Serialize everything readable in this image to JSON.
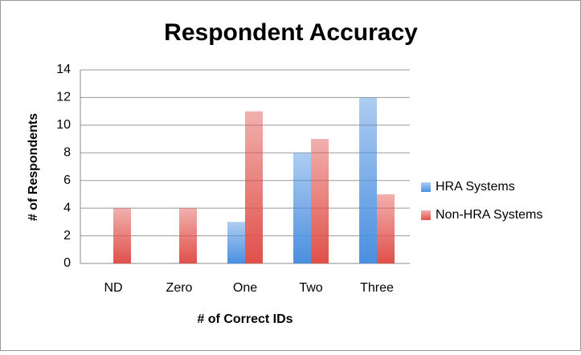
{
  "chart_data": {
    "type": "bar",
    "title": "Respondent Accuracy",
    "x_label": "# of Correct IDs",
    "y_label": "# of Respondents",
    "categories": [
      "ND",
      "Zero",
      "One",
      "Two",
      "Three"
    ],
    "series": [
      {
        "name": "HRA Systems",
        "color": "#4a8fe0",
        "values": [
          0,
          0,
          3,
          8,
          12
        ]
      },
      {
        "name": "Non-HRA Systems",
        "color": "#e0504a",
        "values": [
          4,
          4,
          11,
          9,
          5
        ]
      }
    ],
    "ylim": [
      0,
      14
    ],
    "yticks": [
      0,
      2,
      4,
      6,
      8,
      10,
      12,
      14
    ],
    "grid": true,
    "legend": "right"
  }
}
